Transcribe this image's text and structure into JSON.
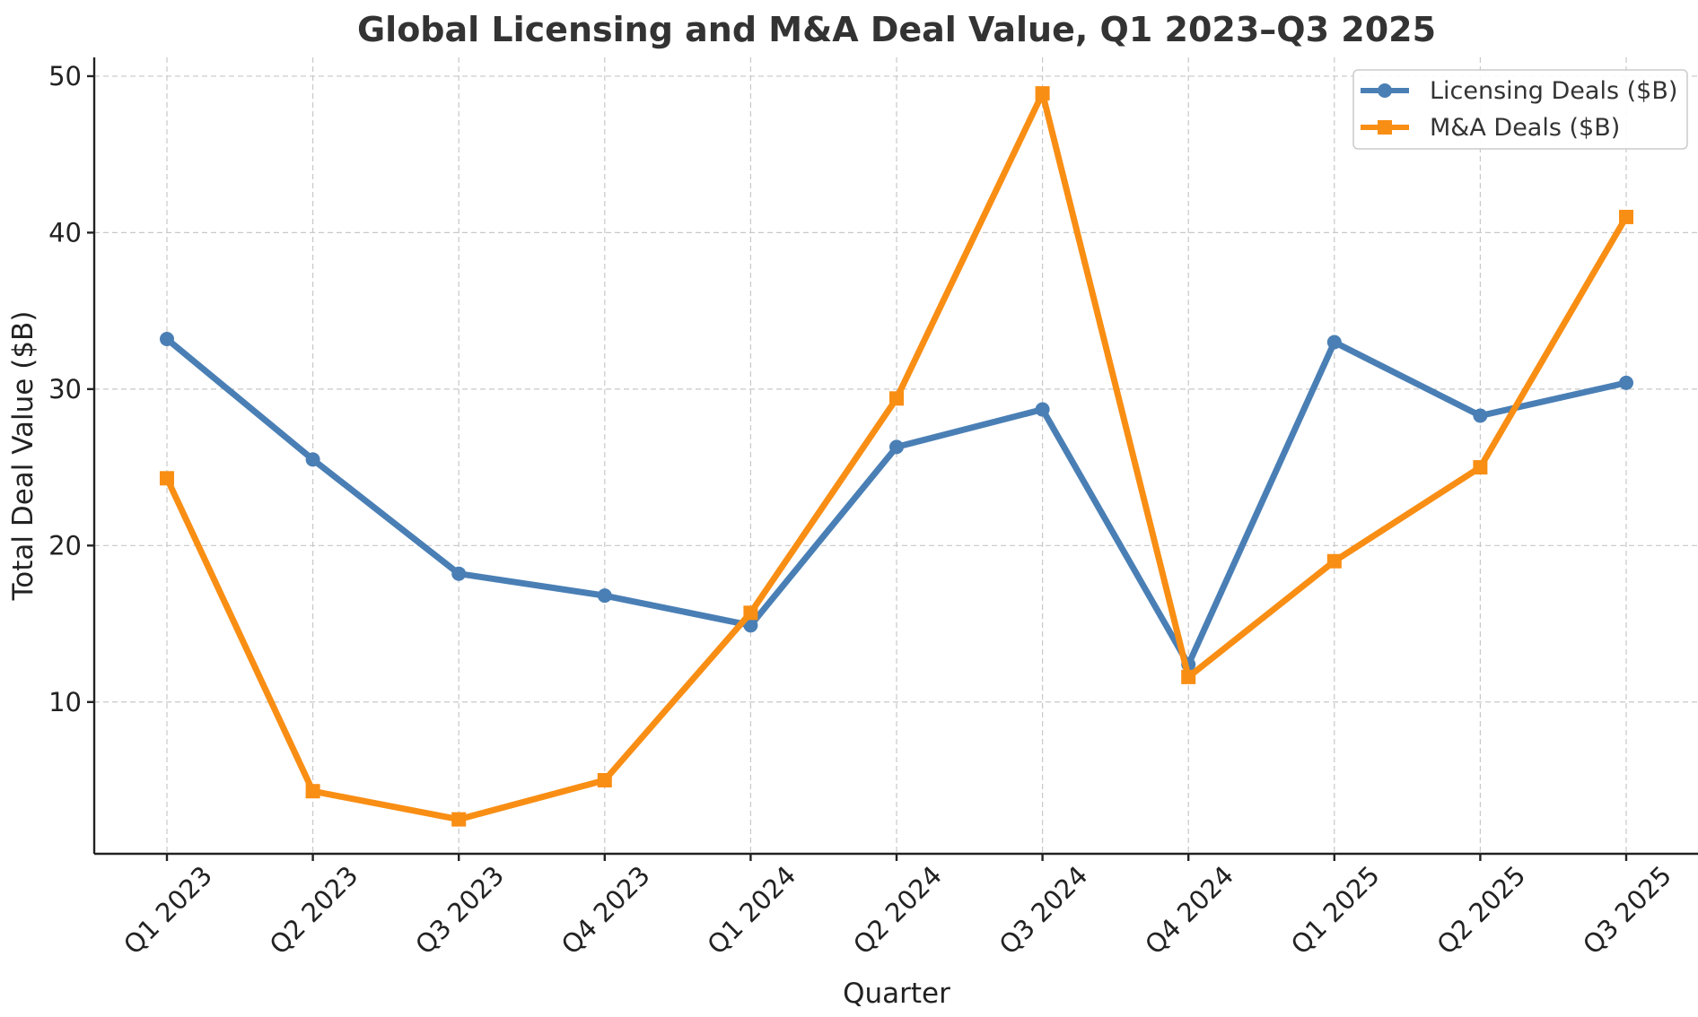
{
  "chart_data": {
    "type": "line",
    "title": "Global Licensing and M&A Deal Value, Q1 2023–Q3 2025",
    "xlabel": "Quarter",
    "ylabel": "Total Deal Value ($B)",
    "categories": [
      "Q1 2023",
      "Q2 2023",
      "Q3 2023",
      "Q4 2023",
      "Q1 2024",
      "Q2 2024",
      "Q3 2024",
      "Q4 2024",
      "Q1 2025",
      "Q2 2025",
      "Q3 2025"
    ],
    "ylim": [
      0.3,
      51.2
    ],
    "yticks": [
      10,
      20,
      30,
      40,
      50
    ],
    "grid": true,
    "legend_position": "top-right",
    "series": [
      {
        "name": "Licensing Deals ($B)",
        "color": "#4a7fb5",
        "marker": "circle",
        "values": [
          33.2,
          25.5,
          18.2,
          16.8,
          14.9,
          26.3,
          28.7,
          12.4,
          33.0,
          28.3,
          30.4
        ]
      },
      {
        "name": "M&A Deals ($B)",
        "color": "#f98e14",
        "marker": "square",
        "values": [
          24.3,
          4.3,
          2.5,
          5.0,
          15.7,
          29.4,
          48.9,
          11.6,
          19.0,
          25.0,
          41.0
        ]
      }
    ]
  }
}
